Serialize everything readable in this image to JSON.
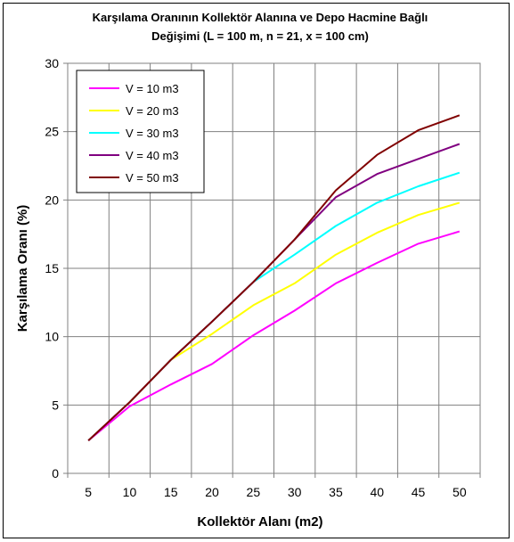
{
  "chart_data": {
    "type": "line",
    "title_line1": "Karşılama Oranının Kollektör Alanına ve Depo Hacmine Bağlı",
    "title_line2": "Değişimi (L = 100 m, n = 21, x = 100 cm)",
    "xlabel": "Kollektör Alanı (m2)",
    "ylabel": "Karşılama Oranı (%)",
    "x": [
      5,
      10,
      15,
      20,
      25,
      30,
      35,
      40,
      45,
      50
    ],
    "x_tick_labels": [
      "5",
      "10",
      "15",
      "20",
      "25",
      "30",
      "35",
      "40",
      "45",
      "50"
    ],
    "y_tick_labels": [
      "0",
      "5",
      "10",
      "15",
      "20",
      "25",
      "30"
    ],
    "ylim": [
      0,
      30
    ],
    "grid": true,
    "legend_position": "top-left",
    "series": [
      {
        "name": "V = 10 m3",
        "color": "#ff00ff",
        "values": [
          2.4,
          4.9,
          6.5,
          8.0,
          10.1,
          11.9,
          13.9,
          15.4,
          16.8,
          17.7
        ]
      },
      {
        "name": "V = 20 m3",
        "color": "#ffff00",
        "values": [
          2.4,
          5.2,
          8.3,
          10.2,
          12.3,
          13.9,
          16.0,
          17.6,
          18.9,
          19.8
        ]
      },
      {
        "name": "V = 30 m3",
        "color": "#00ffff",
        "values": [
          2.4,
          5.2,
          8.3,
          11.1,
          14.0,
          16.0,
          18.1,
          19.8,
          21.0,
          22.0
        ]
      },
      {
        "name": "V = 40 m3",
        "color": "#800080",
        "values": [
          2.4,
          5.2,
          8.3,
          11.1,
          14.0,
          17.1,
          20.2,
          21.9,
          23.0,
          24.1
        ]
      },
      {
        "name": "V = 50 m3",
        "color": "#800000",
        "values": [
          2.4,
          5.2,
          8.3,
          11.1,
          14.0,
          17.1,
          20.7,
          23.3,
          25.1,
          26.2
        ]
      }
    ]
  }
}
